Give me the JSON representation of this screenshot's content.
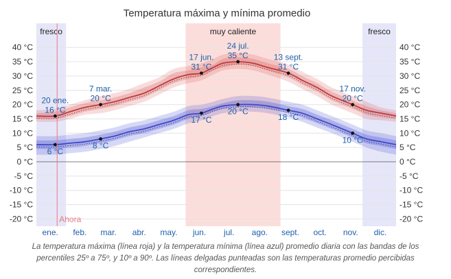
{
  "chart_data": {
    "type": "line",
    "title": "Temperatura máxima y mínima promedio",
    "x_categories": [
      "ene.",
      "feb.",
      "mar.",
      "abr.",
      "may.",
      "jun.",
      "jul.",
      "ago.",
      "sept.",
      "oct.",
      "nov.",
      "dic."
    ],
    "y_ticks": [
      "40 °C",
      "35 °C",
      "30 °C",
      "25 °C",
      "20 °C",
      "15 °C",
      "10 °C",
      "5 °C",
      "0 °C",
      "-5 °C",
      "-10 °C",
      "-15 °C",
      "-20 °C"
    ],
    "ylim": [
      -22,
      42
    ],
    "x_unit": "day of year",
    "xlim": [
      1,
      365
    ],
    "colors": {
      "max": "#c0393b",
      "min": "#3f48c8",
      "cold_band": "#e6e6f9",
      "hot_band": "#fbdedb",
      "now_line": "#e87a84",
      "label": "#1f5fa8"
    },
    "season_bands": [
      {
        "label": "fresco",
        "start_day": 1,
        "end_day": 31,
        "kind": "cold"
      },
      {
        "label": "muy caliente",
        "start_day": 152,
        "end_day": 248,
        "kind": "hot"
      },
      {
        "label": "fresco",
        "start_day": 331,
        "end_day": 365,
        "kind": "cold"
      }
    ],
    "series": [
      {
        "name": "Temperatura máxima",
        "days": [
          1,
          20,
          35,
          50,
          66,
          80,
          95,
          110,
          125,
          140,
          155,
          168,
          180,
          190,
          205,
          220,
          235,
          256,
          270,
          285,
          300,
          321,
          335,
          350,
          365
        ],
        "values": [
          16,
          16,
          17.5,
          19,
          20,
          21,
          22.5,
          24,
          26.5,
          29,
          30.5,
          31,
          33,
          34.5,
          35,
          34.5,
          33,
          31,
          28.5,
          26,
          23,
          20,
          18,
          17,
          16
        ],
        "p25": [
          15,
          15,
          16,
          17.5,
          18.5,
          19.5,
          21,
          22.5,
          25,
          27.5,
          29,
          30,
          32,
          33,
          34,
          33.5,
          32,
          29.5,
          27,
          24.5,
          21.5,
          18.5,
          16.5,
          15.5,
          15
        ],
        "p75": [
          17,
          17.5,
          19,
          20.5,
          21.5,
          22.5,
          24,
          26,
          28,
          31,
          32,
          33,
          34,
          36,
          36.5,
          36,
          34.5,
          32.5,
          30,
          27.5,
          24.5,
          21.5,
          19.5,
          18,
          17
        ],
        "p10": [
          14,
          14,
          15,
          16.5,
          17,
          18,
          19.5,
          21,
          23.5,
          26,
          27.5,
          28.5,
          30.5,
          32,
          32.5,
          32,
          30.5,
          28,
          25.5,
          23,
          20,
          17,
          15,
          14.5,
          14
        ],
        "p90": [
          18,
          18.5,
          20,
          21.5,
          23,
          24,
          25.5,
          27.5,
          29.5,
          32.5,
          33.5,
          34.5,
          36,
          37.5,
          38,
          37.5,
          36,
          34,
          31.5,
          29,
          26,
          23,
          21,
          19,
          18
        ]
      },
      {
        "name": "Temperatura mínima",
        "days": [
          1,
          20,
          35,
          50,
          66,
          80,
          95,
          110,
          125,
          140,
          155,
          168,
          180,
          190,
          205,
          220,
          235,
          256,
          270,
          285,
          300,
          321,
          335,
          350,
          365
        ],
        "values": [
          6,
          6,
          6.5,
          7,
          8,
          9,
          10.5,
          11.5,
          13,
          14.5,
          16.5,
          17,
          18.5,
          19.5,
          20,
          20,
          19.5,
          18,
          17,
          15,
          13,
          10,
          8,
          7,
          6
        ],
        "p25": [
          4.5,
          4.5,
          5,
          5.5,
          6.5,
          7.5,
          9,
          10,
          11.5,
          13,
          15,
          16,
          17.5,
          18.5,
          19,
          19,
          18.5,
          17,
          15.5,
          13.5,
          11.5,
          8.5,
          6.5,
          5.5,
          4.5
        ],
        "p75": [
          7.5,
          7.5,
          8,
          8.5,
          9.5,
          10.5,
          12,
          13,
          14.5,
          16,
          18,
          18.5,
          19.5,
          20.5,
          21.5,
          21.5,
          21,
          19.5,
          18.5,
          16.5,
          14.5,
          11.5,
          9.5,
          8.5,
          7.5
        ],
        "p10": [
          2.5,
          2.5,
          3,
          3.5,
          4.5,
          5.5,
          7,
          8.5,
          10,
          11.5,
          13.5,
          14.5,
          16,
          17,
          17.5,
          17.5,
          17,
          15.5,
          14,
          12,
          10,
          7,
          5,
          3.5,
          2.5
        ],
        "p90": [
          9,
          9,
          9.5,
          10,
          11,
          12,
          13.5,
          14.5,
          16,
          17.5,
          19.5,
          20,
          21,
          22,
          23,
          23,
          22.5,
          21,
          20,
          18,
          16,
          13,
          11,
          10,
          9
        ]
      }
    ],
    "annotations": [
      {
        "series": 0,
        "day": 20,
        "date": "20 ene.",
        "value": 16,
        "value_label": "16 °C"
      },
      {
        "series": 0,
        "day": 66,
        "date": "7 mar.",
        "value": 20,
        "value_label": "20 °C"
      },
      {
        "series": 0,
        "day": 168,
        "date": "17 jun.",
        "value": 31,
        "value_label": "31 °C"
      },
      {
        "series": 0,
        "day": 205,
        "date": "24 jul.",
        "value": 35,
        "value_label": "35 °C"
      },
      {
        "series": 0,
        "day": 256,
        "date": "13 sept.",
        "value": 31,
        "value_label": "31 °C"
      },
      {
        "series": 0,
        "day": 321,
        "date": "17 nov.",
        "value": 20,
        "value_label": "20 °C"
      },
      {
        "series": 1,
        "day": 20,
        "value": 6,
        "value_label": "6 °C"
      },
      {
        "series": 1,
        "day": 66,
        "value": 8,
        "value_label": "8 °C"
      },
      {
        "series": 1,
        "day": 168,
        "value": 17,
        "value_label": "17 °C"
      },
      {
        "series": 1,
        "day": 205,
        "value": 20,
        "value_label": "20 °C"
      },
      {
        "series": 1,
        "day": 256,
        "value": 18,
        "value_label": "18 °C"
      },
      {
        "series": 1,
        "day": 321,
        "value": 10,
        "value_label": "10 °C"
      }
    ],
    "now_marker": {
      "label": "Ahora",
      "day": 22
    }
  },
  "caption": "La temperatura máxima (línea roja) y la temperatura mínima (línea azul) promedio diaria con las bandas de los percentiles 25º a 75º, y 10º a 90º. Las líneas delgadas punteadas son las temperaturas promedio percibidas correspondientes."
}
